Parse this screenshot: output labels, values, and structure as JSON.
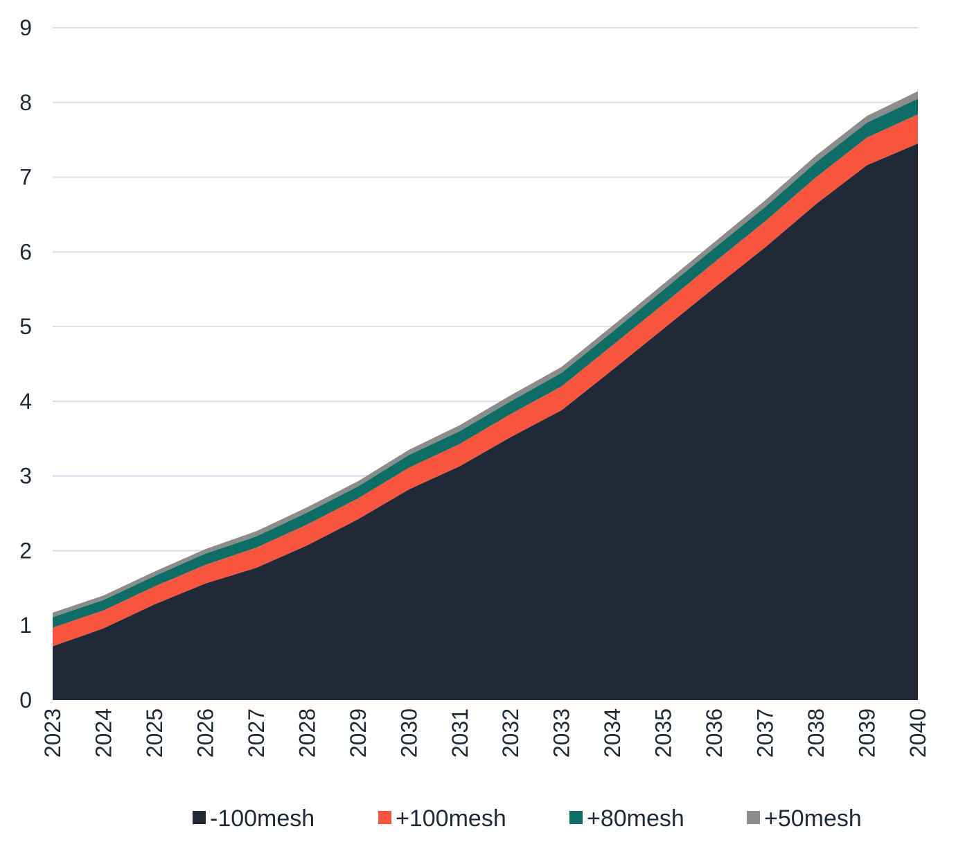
{
  "chart_data": {
    "type": "area",
    "stacked": true,
    "title": "",
    "xlabel": "",
    "ylabel": "",
    "ylim": [
      0,
      9
    ],
    "yticks": [
      0,
      1,
      2,
      3,
      4,
      5,
      6,
      7,
      8,
      9
    ],
    "grid": true,
    "legend_position": "bottom",
    "categories": [
      "2023",
      "2024",
      "2025",
      "2026",
      "2027",
      "2028",
      "2029",
      "2030",
      "2031",
      "2032",
      "2033",
      "2034",
      "2035",
      "2036",
      "2037",
      "2038",
      "2039",
      "2040"
    ],
    "series": [
      {
        "name": "-100mesh",
        "color": "#1f2937",
        "values": [
          0.72,
          0.96,
          1.28,
          1.56,
          1.77,
          2.07,
          2.42,
          2.82,
          3.13,
          3.52,
          3.88,
          4.42,
          4.97,
          5.52,
          6.06,
          6.64,
          7.16,
          7.45
        ]
      },
      {
        "name": "+100mesh",
        "color": "#f7553e",
        "values": [
          0.25,
          0.24,
          0.24,
          0.25,
          0.27,
          0.28,
          0.28,
          0.29,
          0.3,
          0.31,
          0.32,
          0.33,
          0.33,
          0.34,
          0.35,
          0.36,
          0.37,
          0.39
        ]
      },
      {
        "name": "+80mesh",
        "color": "#0e6e66",
        "values": [
          0.14,
          0.14,
          0.14,
          0.15,
          0.15,
          0.16,
          0.16,
          0.17,
          0.17,
          0.17,
          0.18,
          0.18,
          0.19,
          0.19,
          0.19,
          0.2,
          0.2,
          0.21
        ]
      },
      {
        "name": "+50mesh",
        "color": "#8c8c8c",
        "values": [
          0.06,
          0.06,
          0.06,
          0.06,
          0.07,
          0.07,
          0.07,
          0.07,
          0.08,
          0.08,
          0.08,
          0.08,
          0.08,
          0.08,
          0.09,
          0.09,
          0.09,
          0.1
        ]
      }
    ]
  }
}
